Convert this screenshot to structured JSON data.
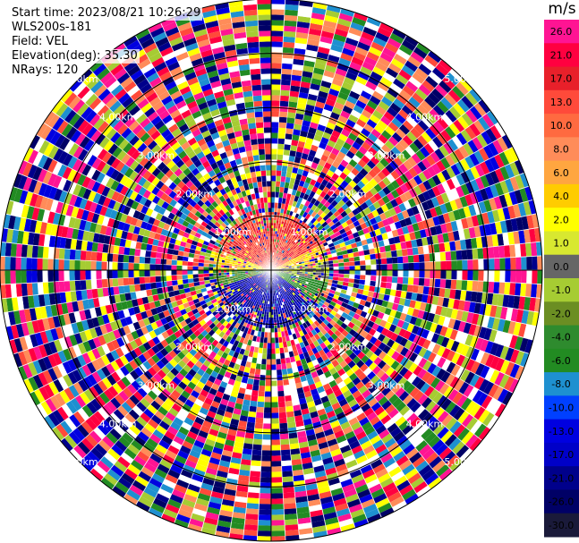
{
  "header": {
    "start_time": "Start time: 2023/08/21 10:26:29",
    "instrument": "WLS200s-181",
    "field": "Field: VEL",
    "elevation": "Elevation(deg): 35.30",
    "nrays": "NRays: 120"
  },
  "chart_data": {
    "type": "polar_ppi",
    "title": "",
    "field": "VEL",
    "unit": "m/s",
    "num_rays": 120,
    "elevation_deg": 35.3,
    "range_rings": [
      {
        "label": "1.00km",
        "range_km": 1.0
      },
      {
        "label": "2.00km",
        "range_km": 2.0
      },
      {
        "label": "3.00km",
        "range_km": 3.0
      },
      {
        "label": "4.00km",
        "range_km": 4.0
      },
      {
        "label": "5.00km",
        "range_km": 5.0
      }
    ],
    "max_range_km": 5.0,
    "near_field_pattern": {
      "north_half": "positive velocities (red/orange, ~10 to 21 m/s)",
      "east_sector": "yellow/green (~1 to 4 m/s)",
      "south_half": "negative velocities (blue, ~-13 to -21 m/s)",
      "beyond_1km": "noise (all colors)"
    },
    "colorbar": {
      "unit": "m/s",
      "ticks": [
        "26.0",
        "21.0",
        "17.0",
        "13.0",
        "10.0",
        "8.0",
        "6.0",
        "4.0",
        "2.0",
        "1.0",
        "0.0",
        "-1.0",
        "-2.0",
        "-4.0",
        "-6.0",
        "-8.0",
        "-10.0",
        "-13.0",
        "-17.0",
        "-21.0",
        "-26.0",
        "-30.0"
      ],
      "values": [
        26,
        21,
        17,
        13,
        10,
        8,
        6,
        4,
        2,
        1,
        0,
        -1,
        -2,
        -4,
        -6,
        -8,
        -10,
        -13,
        -17,
        -21,
        -26,
        -30
      ],
      "colors": [
        "#ff1493",
        "#ff0040",
        "#e8202a",
        "#ff4a3a",
        "#ff6a40",
        "#ff8c59",
        "#ffa640",
        "#ffcc00",
        "#ffff00",
        "#d8e830",
        "#666666",
        "#a6cc33",
        "#6b8e23",
        "#2e8b2e",
        "#228b22",
        "#1e90d0",
        "#0040ff",
        "#0000e0",
        "#0000c8",
        "#00008b",
        "#000066",
        "#1a1a3a"
      ]
    }
  }
}
